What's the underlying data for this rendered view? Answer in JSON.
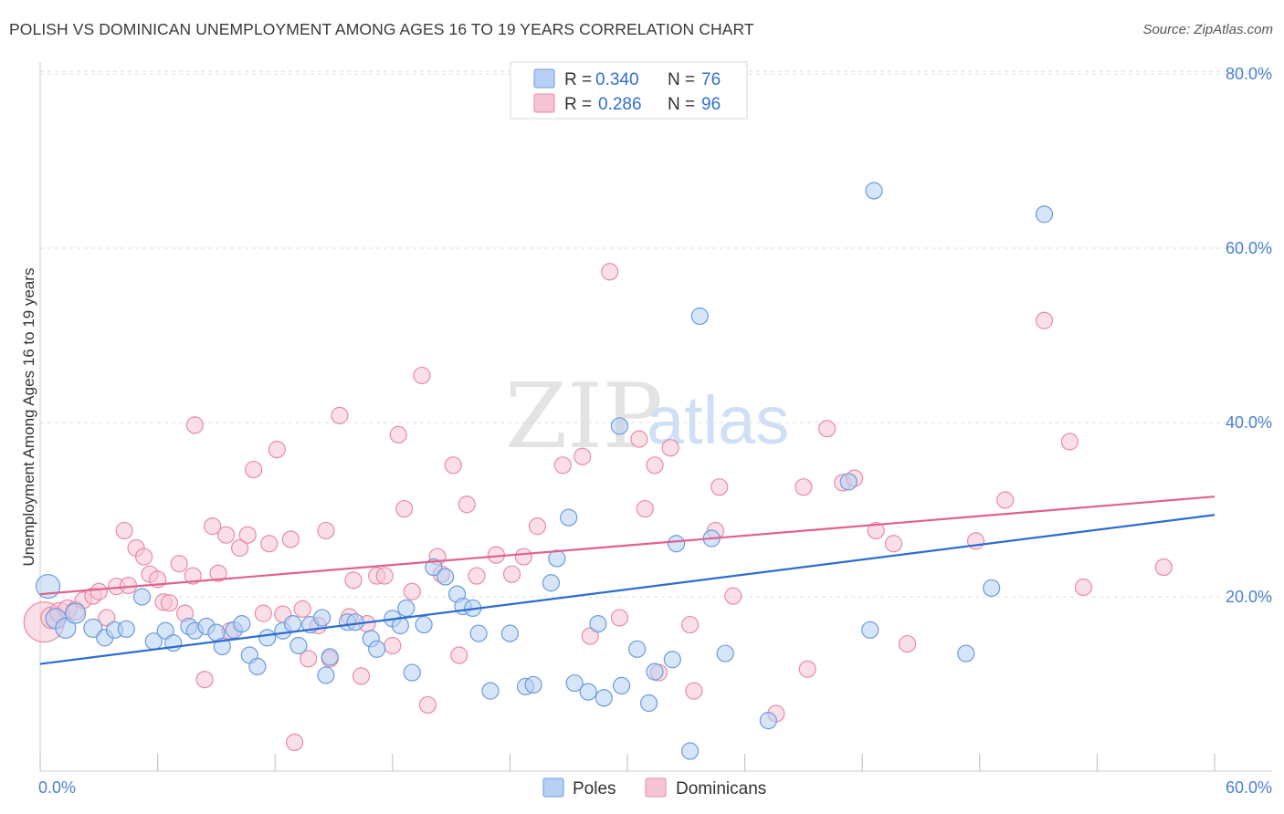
{
  "title": "POLISH VS DOMINICAN UNEMPLOYMENT AMONG AGES 16 TO 19 YEARS CORRELATION CHART",
  "source": "Source: ZipAtlas.com",
  "watermark": {
    "zip": "ZIP",
    "atlas": "atlas"
  },
  "colors": {
    "poles_fill": "#b7cff2",
    "poles_stroke": "#6b9be0",
    "poles_line": "#2a6dd0",
    "dom_fill": "#f7c4d3",
    "dom_stroke": "#e98aa8",
    "dom_line": "#e0628d",
    "tick_text": "#4a7fd4",
    "grid": "#dddddd"
  },
  "legend": {
    "poles": {
      "r_label": "R =",
      "r_value": "0.340",
      "n_label": "N =",
      "n_value": "76"
    },
    "dominicans": {
      "r_label": "R =",
      "r_value": "0.286",
      "n_label": "N =",
      "n_value": "96"
    }
  },
  "chart_data": {
    "type": "scatter",
    "title": "POLISH VS DOMINICAN UNEMPLOYMENT AMONG AGES 16 TO 19 YEARS CORRELATION CHART",
    "xlabel": "",
    "ylabel": "Unemployment Among Ages 16 to 19 years",
    "xlim": [
      0,
      60
    ],
    "ylim": [
      0,
      83
    ],
    "x_tick_labels": [
      "0.0%",
      "60.0%"
    ],
    "y_tick_labels": [
      "20.0%",
      "40.0%",
      "60.0%",
      "80.0%"
    ],
    "y_ticks": [
      20,
      40,
      60,
      80
    ],
    "grid": true,
    "legend_position": "top-center",
    "series": [
      {
        "name": "Poles",
        "trend": {
          "x": [
            0,
            60
          ],
          "y": [
            12.3,
            29.4
          ]
        },
        "points": [
          [
            0.4,
            21.2,
            13
          ],
          [
            0.8,
            17.5,
            11
          ],
          [
            1.3,
            16.4,
            11
          ],
          [
            1.8,
            18.1,
            11
          ],
          [
            2.7,
            16.4,
            10
          ],
          [
            3.3,
            15.3,
            9
          ],
          [
            3.8,
            16.2,
            9
          ],
          [
            4.4,
            16.3,
            9
          ],
          [
            5.2,
            20.0,
            9
          ],
          [
            5.8,
            14.9,
            9
          ],
          [
            6.4,
            16.1,
            9
          ],
          [
            6.8,
            14.7,
            9
          ],
          [
            7.6,
            16.6,
            9
          ],
          [
            7.9,
            16.1,
            9
          ],
          [
            8.5,
            16.6,
            9
          ],
          [
            9.0,
            15.9,
            9
          ],
          [
            9.3,
            14.3,
            9
          ],
          [
            9.9,
            16.2,
            9
          ],
          [
            10.3,
            16.9,
            9
          ],
          [
            10.7,
            13.3,
            9
          ],
          [
            11.1,
            12.0,
            9
          ],
          [
            11.6,
            15.3,
            9
          ],
          [
            12.4,
            16.1,
            9
          ],
          [
            12.9,
            16.9,
            9
          ],
          [
            13.2,
            14.4,
            9
          ],
          [
            13.8,
            16.8,
            9
          ],
          [
            14.4,
            17.6,
            9
          ],
          [
            14.6,
            11.0,
            9
          ],
          [
            14.8,
            13.1,
            9
          ],
          [
            15.7,
            17.1,
            9
          ],
          [
            16.1,
            17.1,
            9
          ],
          [
            16.9,
            15.2,
            9
          ],
          [
            17.2,
            14.0,
            9
          ],
          [
            18.0,
            17.5,
            9
          ],
          [
            18.4,
            16.7,
            9
          ],
          [
            18.7,
            18.7,
            9
          ],
          [
            19.0,
            11.3,
            9
          ],
          [
            19.6,
            16.8,
            9
          ],
          [
            20.1,
            23.4,
            9
          ],
          [
            20.7,
            22.3,
            9
          ],
          [
            21.3,
            20.3,
            9
          ],
          [
            21.6,
            18.9,
            9
          ],
          [
            22.1,
            18.7,
            9
          ],
          [
            22.4,
            15.8,
            9
          ],
          [
            23.0,
            9.2,
            9
          ],
          [
            24.0,
            15.8,
            9
          ],
          [
            24.8,
            9.7,
            9
          ],
          [
            25.2,
            9.9,
            9
          ],
          [
            26.1,
            21.6,
            9
          ],
          [
            26.4,
            24.4,
            9
          ],
          [
            27.0,
            29.1,
            9
          ],
          [
            27.3,
            10.1,
            9
          ],
          [
            28.0,
            9.1,
            9
          ],
          [
            28.5,
            16.9,
            9
          ],
          [
            28.8,
            8.4,
            9
          ],
          [
            29.6,
            39.6,
            9
          ],
          [
            29.7,
            9.8,
            9
          ],
          [
            30.5,
            14.0,
            9
          ],
          [
            31.1,
            7.8,
            9
          ],
          [
            31.4,
            11.4,
            9
          ],
          [
            32.3,
            12.8,
            9
          ],
          [
            32.5,
            26.1,
            9
          ],
          [
            33.2,
            2.3,
            9
          ],
          [
            33.7,
            52.2,
            9
          ],
          [
            34.3,
            26.7,
            9
          ],
          [
            35.0,
            13.5,
            9
          ],
          [
            37.2,
            5.8,
            9
          ],
          [
            41.3,
            33.2,
            9
          ],
          [
            42.4,
            16.2,
            9
          ],
          [
            42.6,
            66.6,
            9
          ],
          [
            47.3,
            13.5,
            9
          ],
          [
            48.6,
            21.0,
            9
          ],
          [
            51.3,
            63.9,
            9
          ]
        ]
      },
      {
        "name": "Dominicans",
        "trend": {
          "x": [
            0,
            60
          ],
          "y": [
            20.3,
            31.5
          ]
        },
        "points": [
          [
            0.2,
            17.1,
            22
          ],
          [
            0.6,
            17.6,
            12
          ],
          [
            1.0,
            18.2,
            11
          ],
          [
            1.4,
            18.6,
            10
          ],
          [
            1.8,
            18.4,
            10
          ],
          [
            2.2,
            19.6,
            9
          ],
          [
            2.7,
            20.1,
            9
          ],
          [
            3.0,
            20.6,
            9
          ],
          [
            3.4,
            17.6,
            9
          ],
          [
            3.9,
            21.2,
            9
          ],
          [
            4.3,
            27.6,
            9
          ],
          [
            4.5,
            21.3,
            9
          ],
          [
            4.9,
            25.6,
            9
          ],
          [
            5.3,
            24.6,
            9
          ],
          [
            5.6,
            22.6,
            9
          ],
          [
            6.0,
            22.0,
            9
          ],
          [
            6.3,
            19.4,
            9
          ],
          [
            6.6,
            19.3,
            9
          ],
          [
            7.1,
            23.8,
            9
          ],
          [
            7.4,
            18.1,
            9
          ],
          [
            7.8,
            22.4,
            9
          ],
          [
            7.9,
            39.7,
            9
          ],
          [
            8.4,
            10.5,
            9
          ],
          [
            8.8,
            28.1,
            9
          ],
          [
            9.1,
            22.7,
            9
          ],
          [
            9.5,
            27.1,
            9
          ],
          [
            9.7,
            16.1,
            9
          ],
          [
            10.2,
            25.6,
            9
          ],
          [
            10.6,
            27.1,
            9
          ],
          [
            10.9,
            34.6,
            9
          ],
          [
            11.4,
            18.1,
            9
          ],
          [
            11.7,
            26.1,
            9
          ],
          [
            12.1,
            36.9,
            9
          ],
          [
            12.4,
            18.0,
            9
          ],
          [
            12.8,
            26.6,
            9
          ],
          [
            13.0,
            3.3,
            9
          ],
          [
            13.4,
            18.6,
            9
          ],
          [
            13.7,
            12.9,
            9
          ],
          [
            14.2,
            16.7,
            9
          ],
          [
            14.6,
            27.6,
            9
          ],
          [
            14.8,
            12.9,
            9
          ],
          [
            15.3,
            40.8,
            9
          ],
          [
            15.8,
            17.7,
            9
          ],
          [
            16.0,
            21.9,
            9
          ],
          [
            16.4,
            10.9,
            9
          ],
          [
            16.7,
            16.9,
            9
          ],
          [
            17.2,
            22.4,
            9
          ],
          [
            17.6,
            22.4,
            9
          ],
          [
            18.0,
            14.4,
            9
          ],
          [
            18.3,
            38.6,
            9
          ],
          [
            18.6,
            30.1,
            9
          ],
          [
            19.0,
            20.6,
            9
          ],
          [
            19.5,
            45.4,
            9
          ],
          [
            19.8,
            7.6,
            9
          ],
          [
            20.3,
            24.6,
            9
          ],
          [
            20.5,
            22.6,
            9
          ],
          [
            21.1,
            35.1,
            9
          ],
          [
            21.4,
            13.3,
            9
          ],
          [
            21.8,
            30.6,
            9
          ],
          [
            22.3,
            22.4,
            9
          ],
          [
            23.3,
            24.8,
            9
          ],
          [
            24.1,
            22.6,
            9
          ],
          [
            24.7,
            24.6,
            9
          ],
          [
            25.4,
            28.1,
            9
          ],
          [
            26.7,
            35.1,
            9
          ],
          [
            27.7,
            36.1,
            9
          ],
          [
            28.1,
            15.5,
            9
          ],
          [
            29.1,
            57.3,
            9
          ],
          [
            29.6,
            17.6,
            9
          ],
          [
            30.6,
            38.1,
            9
          ],
          [
            30.9,
            30.1,
            9
          ],
          [
            31.4,
            35.1,
            9
          ],
          [
            31.6,
            11.3,
            9
          ],
          [
            32.2,
            37.1,
            9
          ],
          [
            33.2,
            16.8,
            9
          ],
          [
            33.4,
            9.2,
            9
          ],
          [
            34.5,
            27.6,
            9
          ],
          [
            34.7,
            32.6,
            9
          ],
          [
            35.4,
            20.1,
            9
          ],
          [
            37.6,
            6.6,
            9
          ],
          [
            39.0,
            32.6,
            9
          ],
          [
            39.2,
            11.7,
            9
          ],
          [
            40.2,
            39.3,
            9
          ],
          [
            41.0,
            33.1,
            9
          ],
          [
            41.6,
            33.6,
            9
          ],
          [
            42.7,
            27.6,
            9
          ],
          [
            43.6,
            26.1,
            9
          ],
          [
            44.3,
            14.6,
            9
          ],
          [
            47.8,
            26.4,
            9
          ],
          [
            49.3,
            31.1,
            9
          ],
          [
            51.3,
            51.7,
            9
          ],
          [
            52.6,
            37.8,
            9
          ],
          [
            53.3,
            21.1,
            9
          ],
          [
            57.4,
            23.4,
            9
          ]
        ]
      }
    ]
  },
  "bottom_legend": {
    "poles": "Poles",
    "dominicans": "Dominicans"
  }
}
